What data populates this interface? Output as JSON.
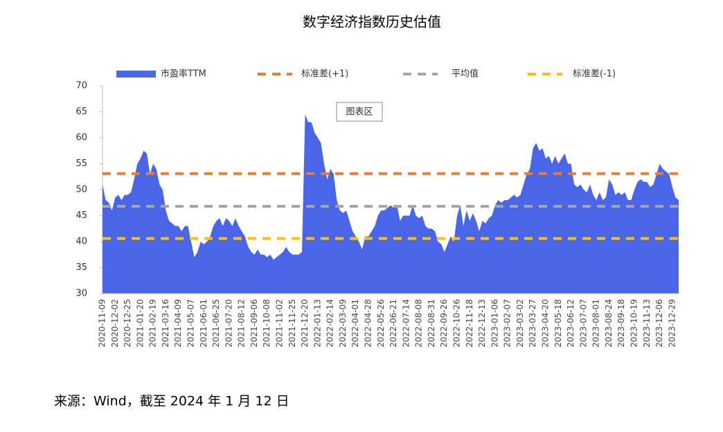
{
  "chart_data": {
    "type": "area",
    "title": "数字经济指数历史估值",
    "tooltip": "图表区",
    "source": "来源：Wind，截至 2024 年 1 月 12 日",
    "categories": [
      "2020-11-09",
      null,
      null,
      null,
      "2020-12-02",
      null,
      null,
      null,
      "2020-12-25",
      null,
      null,
      null,
      "2021-01-20",
      null,
      null,
      null,
      "2021-02-19",
      null,
      null,
      null,
      "2021-03-16",
      null,
      null,
      null,
      "2021-04-09",
      null,
      null,
      null,
      "2021-05-07",
      null,
      null,
      null,
      "2021-06-01",
      null,
      null,
      null,
      "2021-06-25",
      null,
      null,
      null,
      "2021-07-20",
      null,
      null,
      null,
      "2021-08-12",
      null,
      null,
      null,
      "2021-09-06",
      null,
      null,
      null,
      "2021-10-08",
      null,
      null,
      null,
      "2021-11-02",
      null,
      null,
      null,
      "2021-11-25",
      null,
      null,
      null,
      "2021-12-20",
      null,
      null,
      null,
      "2022-01-13",
      null,
      null,
      null,
      "2022-02-14",
      null,
      null,
      null,
      "2022-03-09",
      null,
      null,
      null,
      "2022-04-01",
      null,
      null,
      null,
      "2022-04-28",
      null,
      null,
      null,
      "2022-05-26",
      null,
      null,
      null,
      "2022-06-21",
      null,
      null,
      null,
      "2022-07-14",
      null,
      null,
      null,
      "2022-08-08",
      null,
      null,
      null,
      "2022-08-31",
      null,
      null,
      null,
      "2022-09-26",
      null,
      null,
      null,
      "2022-10-26",
      null,
      null,
      null,
      "2022-11-18",
      null,
      null,
      null,
      "2022-12-13",
      null,
      null,
      null,
      "2023-01-06",
      null,
      null,
      null,
      "2023-02-07",
      null,
      null,
      null,
      "2023-03-02",
      null,
      null,
      null,
      "2023-03-27",
      null,
      null,
      null,
      "2023-04-20",
      null,
      null,
      null,
      "2023-05-18",
      null,
      null,
      null,
      "2023-06-12",
      null,
      null,
      null,
      "2023-07-07",
      null,
      null,
      null,
      "2023-08-01",
      null,
      null,
      null,
      "2023-08-24",
      null,
      null,
      null,
      "2023-09-18",
      null,
      null,
      null,
      "2023-10-19",
      null,
      null,
      null,
      "2023-11-13",
      null,
      null,
      null,
      "2023-12-06",
      null,
      null,
      null,
      "2023-12-29",
      null,
      null
    ],
    "series": [
      {
        "name": "市盈率TTM",
        "color": "#4a66e8",
        "values": [
          51,
          48,
          47.5,
          46,
          48.5,
          49,
          48,
          49,
          49,
          49.5,
          52,
          55,
          56,
          57.5,
          57,
          53,
          55,
          54,
          51,
          50,
          46,
          44,
          43.5,
          43,
          43,
          42,
          43,
          43,
          40,
          37,
          38,
          40,
          39.5,
          40,
          41,
          43,
          44,
          44.5,
          43,
          44.5,
          44,
          43,
          44.5,
          43,
          42,
          41,
          39,
          38,
          37.5,
          38.5,
          37.5,
          37.5,
          37,
          37.5,
          36.5,
          37,
          37.5,
          38,
          39,
          38,
          37.5,
          37.5,
          37.5,
          38,
          64.5,
          63,
          63,
          61,
          60,
          59,
          55,
          52,
          54,
          53,
          48,
          46,
          45.5,
          46,
          44,
          42,
          41,
          40,
          38.5,
          41,
          41,
          42,
          43,
          45,
          46,
          46,
          46.5,
          47,
          46.5,
          47,
          44,
          45,
          45,
          45,
          47,
          45,
          44.5,
          45,
          43,
          42.5,
          42.5,
          42,
          40,
          39.5,
          38,
          39.5,
          41,
          40,
          45,
          47,
          43,
          46,
          44,
          45.5,
          44,
          42,
          44,
          43.5,
          44.5,
          45,
          47,
          48,
          47.5,
          48,
          48,
          48.5,
          49,
          48.5,
          49,
          51,
          53,
          54,
          58,
          59,
          57.5,
          58,
          56,
          56.5,
          55,
          56.5,
          55,
          56,
          57,
          55,
          55,
          51,
          50.5,
          51,
          50,
          49.5,
          51,
          49,
          48,
          49.5,
          48,
          48.5,
          52,
          51,
          49,
          49.5,
          49,
          49.5,
          48,
          48,
          50,
          51.5,
          52,
          51.5,
          51.5,
          50.5,
          51,
          53,
          55,
          54,
          53.5,
          53,
          50.5,
          48.5,
          48
        ]
      }
    ],
    "reference_lines": [
      {
        "name": "标准差(+1)",
        "value": 53.1,
        "color": "#ed7d31"
      },
      {
        "name": "平均值",
        "value": 46.8,
        "color": "#a5a5a5"
      },
      {
        "name": "标准差(-1)",
        "value": 40.6,
        "color": "#ffc000"
      }
    ],
    "ylim": [
      30,
      70
    ],
    "yticks": [
      30,
      35,
      40,
      45,
      50,
      55,
      60,
      65,
      70
    ]
  }
}
